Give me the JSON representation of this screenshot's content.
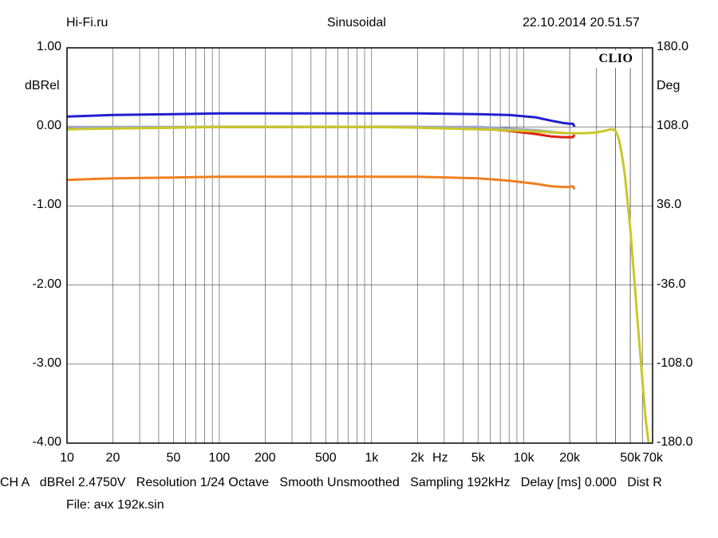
{
  "header": {
    "left": "Hi-Fi.ru",
    "center": "Sinusoidal",
    "right": "22.10.2014 20.51.57"
  },
  "badge": "CLIO",
  "footer": {
    "status": "CH A   dBRel 2.4750V   Resolution 1/24 Octave   Smooth Unsmoothed   Sampling 192kHz   Delay [ms] 0.000   Dist R",
    "file": "File: ачх 192к.sin"
  },
  "chart_data": {
    "type": "line",
    "xscale": "log",
    "xlim": [
      10,
      70000
    ],
    "ylim": [
      -4,
      1
    ],
    "ylabel": "dBRel",
    "y2label": "Deg",
    "y2lim": [
      -180,
      180
    ],
    "x_unit_label": "Hz",
    "grid": true,
    "x_tick_labels": [
      {
        "value": 10,
        "label": "10"
      },
      {
        "value": 20,
        "label": "20"
      },
      {
        "value": 50,
        "label": "50"
      },
      {
        "value": 100,
        "label": "100"
      },
      {
        "value": 200,
        "label": "200"
      },
      {
        "value": 500,
        "label": "500"
      },
      {
        "value": 1000,
        "label": "1k"
      },
      {
        "value": 2000,
        "label": "2k"
      },
      {
        "value": 5000,
        "label": "5k"
      },
      {
        "value": 10000,
        "label": "10k"
      },
      {
        "value": 20000,
        "label": "20k"
      },
      {
        "value": 50000,
        "label": "50k"
      },
      {
        "value": 70000,
        "label": "70k"
      }
    ],
    "y_tick_labels": [
      "1.00",
      "0.00",
      "-1.00",
      "-2.00",
      "-3.00",
      "-4.00"
    ],
    "y_tick_values": [
      1,
      0,
      -1,
      -2,
      -3,
      -4
    ],
    "y2_tick_labels": [
      "180.0",
      "108.0",
      "36.0",
      "-36.0",
      "-108.0",
      "-180.0"
    ],
    "series": [
      {
        "color": "#1f1fd0",
        "x": [
          10,
          20,
          50,
          100,
          200,
          500,
          1000,
          2000,
          5000,
          8000,
          12000,
          15000,
          18000,
          20000,
          21000,
          21500
        ],
        "y": [
          0.13,
          0.15,
          0.16,
          0.17,
          0.17,
          0.17,
          0.17,
          0.17,
          0.16,
          0.15,
          0.12,
          0.08,
          0.05,
          0.04,
          0.04,
          0.0
        ]
      },
      {
        "color": "#e02010",
        "x": [
          10,
          20,
          50,
          100,
          200,
          500,
          1000,
          2000,
          5000,
          8000,
          12000,
          15000,
          18000,
          20000,
          21000,
          21500
        ],
        "y": [
          -0.02,
          -0.01,
          -0.005,
          0.0,
          0.0,
          0.0,
          0.0,
          0.0,
          -0.02,
          -0.05,
          -0.09,
          -0.12,
          -0.13,
          -0.13,
          -0.13,
          -0.1
        ]
      },
      {
        "color": "#a0a8c8",
        "x": [
          10,
          20,
          50,
          100,
          200,
          500,
          1000,
          2000,
          5000,
          8000,
          12000,
          15000,
          18000,
          20000,
          21000
        ],
        "y": [
          0.0,
          0.0,
          0.0,
          0.0,
          0.0,
          0.0,
          0.0,
          0.0,
          0.0,
          -0.02,
          -0.04,
          -0.06,
          -0.08,
          -0.08,
          -0.08
        ]
      },
      {
        "color": "#f08020",
        "x": [
          10,
          20,
          50,
          100,
          200,
          500,
          1000,
          2000,
          5000,
          8000,
          12000,
          15000,
          18000,
          20000,
          21000,
          21500
        ],
        "y": [
          -0.67,
          -0.65,
          -0.64,
          -0.63,
          -0.63,
          -0.63,
          -0.63,
          -0.63,
          -0.65,
          -0.68,
          -0.72,
          -0.75,
          -0.76,
          -0.76,
          -0.75,
          -0.79
        ]
      },
      {
        "color": "#c8c828",
        "x": [
          10,
          20,
          50,
          100,
          200,
          500,
          1000,
          2000,
          5000,
          10000,
          15000,
          20000,
          25000,
          30000,
          34000,
          37000,
          38500,
          40000,
          42000,
          44000,
          46000,
          48000,
          50000,
          53000,
          56000,
          60000,
          63000,
          66000
        ],
        "y": [
          -0.03,
          -0.02,
          -0.01,
          0.0,
          0.0,
          0.0,
          0.0,
          -0.01,
          -0.03,
          -0.05,
          -0.07,
          -0.08,
          -0.08,
          -0.07,
          -0.05,
          -0.03,
          -0.03,
          -0.05,
          -0.15,
          -0.35,
          -0.6,
          -0.95,
          -1.3,
          -1.9,
          -2.5,
          -3.2,
          -3.7,
          -4.0
        ]
      }
    ]
  }
}
